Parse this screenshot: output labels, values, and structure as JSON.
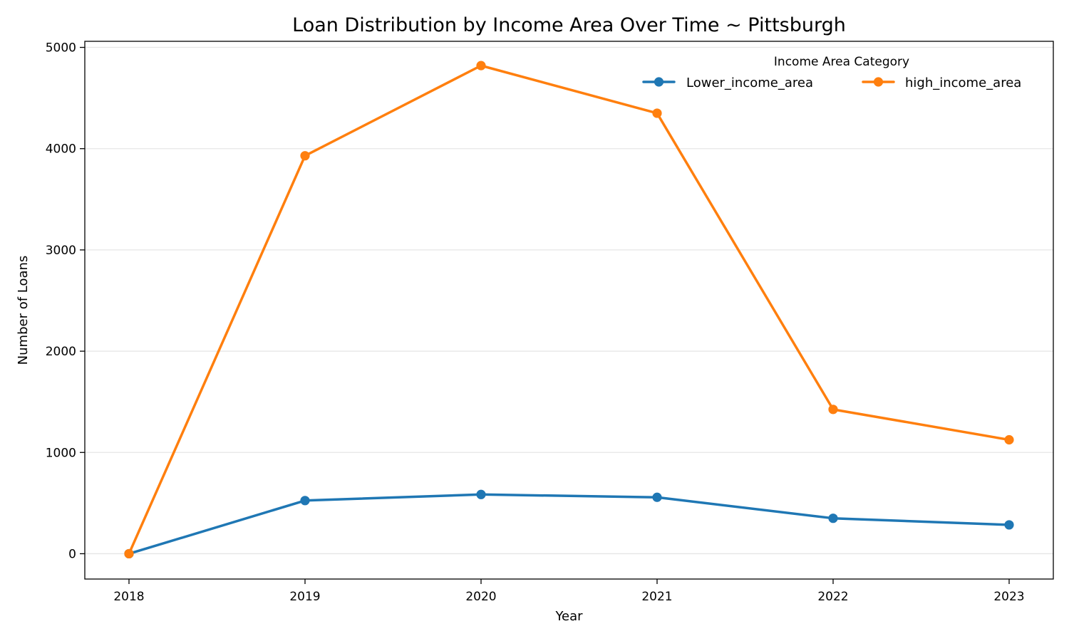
{
  "chart_data": {
    "type": "line",
    "title": "Loan Distribution by Income Area Over Time ~ Pittsburgh",
    "xlabel": "Year",
    "ylabel": "Number of Loans",
    "x": [
      "2018",
      "2019",
      "2020",
      "2021",
      "2022",
      "2023"
    ],
    "ylim": [
      -250,
      5060
    ],
    "yticks": [
      0,
      1000,
      2000,
      3000,
      4000,
      5000
    ],
    "grid": "horizontal",
    "legend": {
      "title": "Income Area Category",
      "placement": "top-right",
      "columns": 2
    },
    "series": [
      {
        "name": "Lower_income_area",
        "color": "#1f77b4",
        "values": [
          0,
          525,
          585,
          557,
          350,
          285
        ]
      },
      {
        "name": "high_income_area",
        "color": "#ff7f0e",
        "values": [
          0,
          3930,
          4820,
          4350,
          1425,
          1125
        ]
      }
    ]
  }
}
